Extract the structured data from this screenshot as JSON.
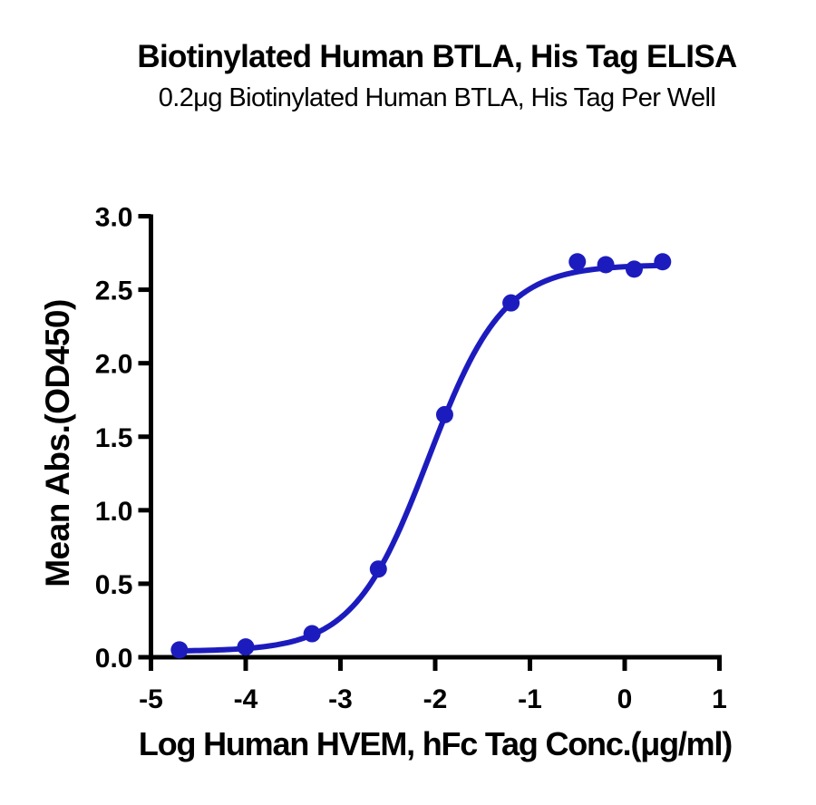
{
  "chart_data": {
    "type": "scatter",
    "title": "Biotinylated Human BTLA, His Tag ELISA",
    "subtitle": "0.2μg Biotinylated Human BTLA, His Tag Per Well",
    "xlabel": "Log Human HVEM, hFc Tag Conc.(μg/ml)",
    "ylabel": "Mean Abs.(OD450)",
    "xlim": [
      -5,
      1
    ],
    "ylim": [
      0,
      3
    ],
    "x_tick_values": [
      -5,
      -4,
      -3,
      -2,
      -1,
      0,
      1
    ],
    "x_tick_labels": [
      "-5",
      "-4",
      "-3",
      "-2",
      "-1",
      "0",
      "1"
    ],
    "y_tick_values": [
      0,
      0.5,
      1,
      1.5,
      2,
      2.5,
      3
    ],
    "y_tick_labels": [
      "0.0",
      "0.5",
      "1.0",
      "1.5",
      "2.0",
      "2.5",
      "3.0"
    ],
    "grid": false,
    "legend": "none",
    "axis_color": "#000000",
    "line_color": "#1c1cbe",
    "marker_color": "#1c1cbe",
    "series": [
      {
        "name": "Biotinylated Human BTLA, His Tag",
        "x": [
          -4.7,
          -4.0,
          -3.3,
          -2.6,
          -1.9,
          -1.2,
          -0.5,
          -0.2,
          0.1,
          0.4
        ],
        "y": [
          0.05,
          0.07,
          0.16,
          0.6,
          1.65,
          2.41,
          2.69,
          2.67,
          2.64,
          2.69
        ]
      }
    ],
    "fit_curve": {
      "model": "4PL",
      "bottom": 0.04,
      "top": 2.67,
      "log_ec50": -2.07,
      "hill": 1.1,
      "x_start": -4.7,
      "x_end": 0.4
    }
  }
}
